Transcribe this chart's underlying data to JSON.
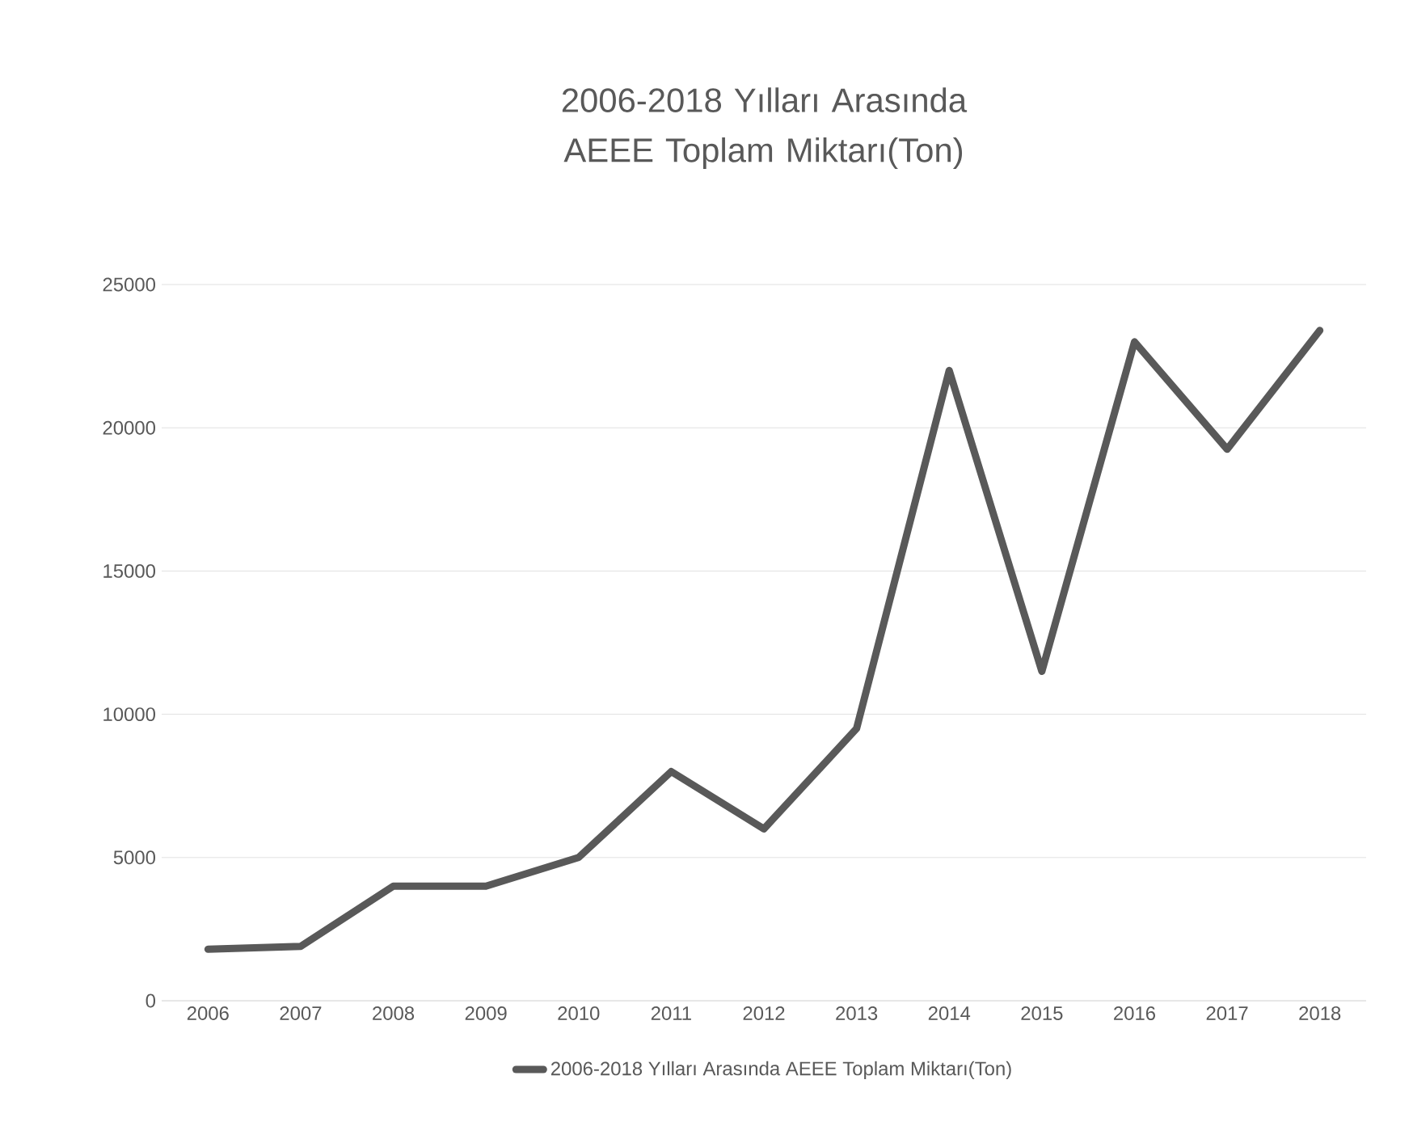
{
  "chart_data": {
    "type": "line",
    "title": "2006-2018 Yılları Arasında AEEE Toplam Miktarı(Ton)",
    "categories": [
      "2006",
      "2007",
      "2008",
      "2009",
      "2010",
      "2011",
      "2012",
      "2013",
      "2014",
      "2015",
      "2016",
      "2017",
      "2018"
    ],
    "series": [
      {
        "name": "2006-2018 Yılları Arasında AEEE Toplam Miktarı(Ton)",
        "color": "#595959",
        "values": [
          1800,
          1900,
          4000,
          4000,
          5000,
          8000,
          6000,
          9500,
          22000,
          11500,
          23000,
          19250,
          23400
        ]
      }
    ],
    "ylim": [
      0,
      25000
    ],
    "yticks": [
      0,
      5000,
      10000,
      15000,
      20000,
      25000
    ],
    "grid": "y",
    "legend": "bottom",
    "marker": "none",
    "line_style": "solid"
  }
}
